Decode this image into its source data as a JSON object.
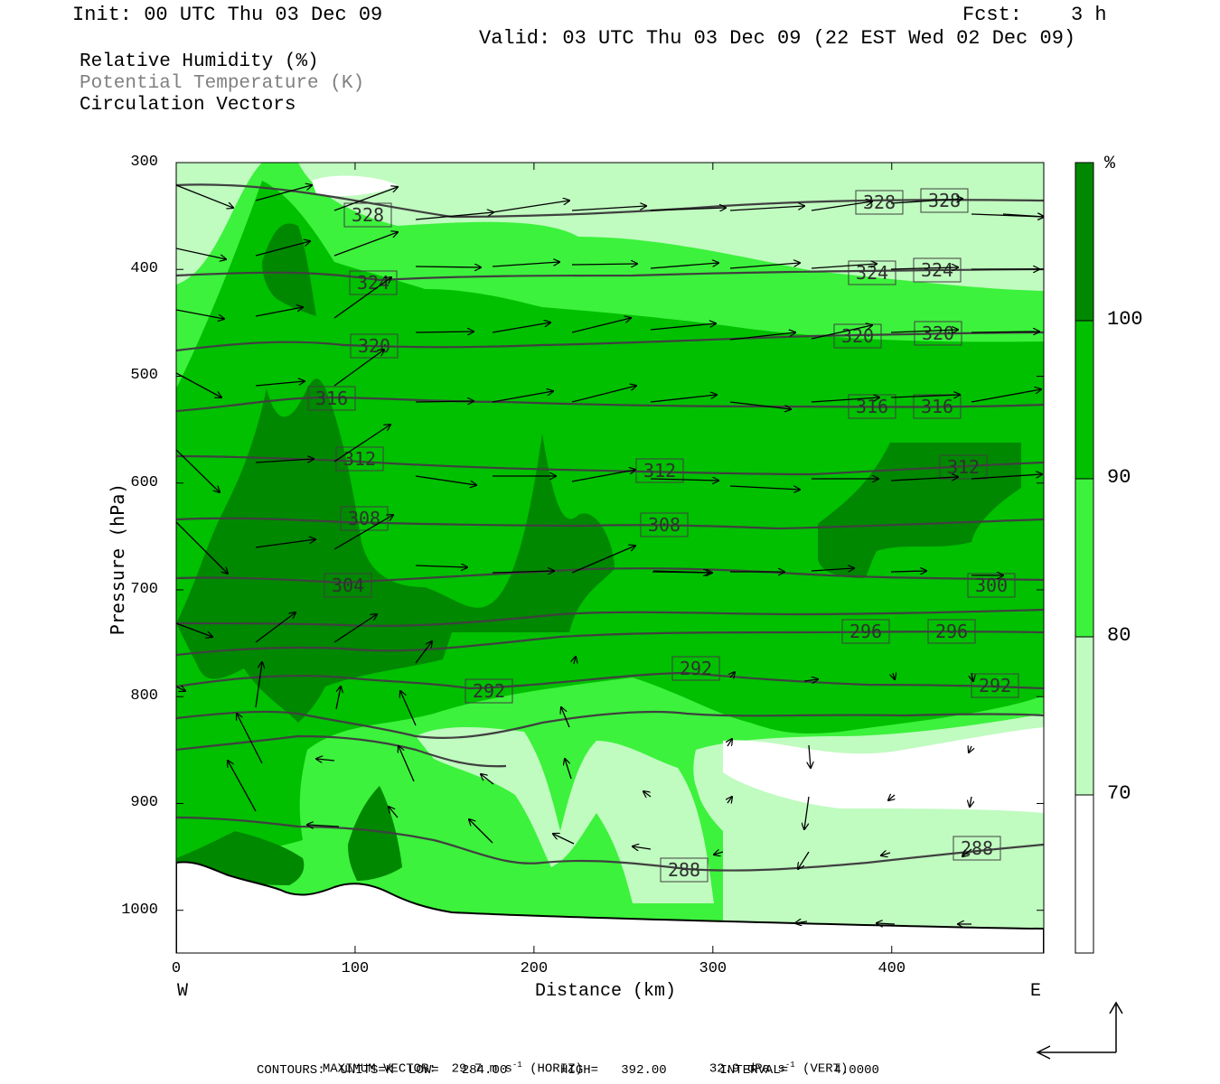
{
  "header": {
    "init": "Init: 00 UTC Thu 03 Dec 09",
    "fcst_label": "Fcst:",
    "fcst_value": "3 h",
    "valid": "Valid: 03 UTC Thu 03 Dec 09 (22 EST Wed 02 Dec 09)"
  },
  "legend": {
    "rh": "Relative Humidity (%)",
    "theta": "Potential Temperature (K)",
    "vectors": "Circulation Vectors"
  },
  "footer": {
    "max_vector": "MAXIMUM VECTOR:  29.7 m s",
    "horiz": " (HORIZ)",
    "vert_val": "32.9 dPa s",
    "vert": " (VERT)",
    "contours": "CONTOURS:  UNITS=K  LOW=   284.00       HIGH=   392.00       INTERVAL=      4.0000",
    "exp": "-1"
  },
  "colors": {
    "rh_70_80": "#c0fbc0",
    "rh_80_90": "#3cf23c",
    "rh_90_100": "#00c000",
    "rh_100": "#008800",
    "theta_line": "#404040",
    "vector": "#000000"
  },
  "chart_data": {
    "type": "heatmap",
    "xlabel": "Distance (km)",
    "ylabel": "Pressure (hPa)",
    "x_ticks": [
      0,
      100,
      200,
      300,
      400
    ],
    "y_ticks": [
      300,
      400,
      500,
      600,
      700,
      800,
      900,
      1000
    ],
    "xlim": [
      0,
      485
    ],
    "ylim": [
      300,
      1040
    ],
    "x_end_labels": {
      "left": "W",
      "right": "E"
    },
    "colorbar": {
      "unit": "%",
      "levels": [
        70,
        80,
        90,
        100
      ],
      "level_labels": [
        "70",
        "80",
        "90",
        "100"
      ]
    },
    "theta_contours": [
      {
        "label": "328",
        "km": 357,
        "p": 340
      },
      {
        "label": "324",
        "km": 357,
        "p": 405
      },
      {
        "label": "320",
        "km": 357,
        "p": 470
      },
      {
        "label": "316",
        "km": 357,
        "p": 535
      },
      {
        "label": "312",
        "km": 357,
        "p": 595
      },
      {
        "label": "308",
        "km": 357,
        "p": 655
      },
      {
        "label": "304",
        "km": 357,
        "p": 700
      },
      {
        "label": "300",
        "km": 357,
        "p": 715
      },
      {
        "label": "296",
        "km": 357,
        "p": 752
      },
      {
        "label": "292",
        "km": 357,
        "p": 792
      },
      {
        "label": "288",
        "km": 357,
        "p": 950
      }
    ],
    "theta_labels": [
      "328",
      "328",
      "328",
      "324",
      "324",
      "324",
      "320",
      "320",
      "320",
      "316",
      "316",
      "316",
      "312",
      "312",
      "312",
      "308",
      "308",
      "304",
      "300",
      "296",
      "296",
      "292",
      "292",
      "292",
      "288",
      "288"
    ],
    "grid": false
  }
}
